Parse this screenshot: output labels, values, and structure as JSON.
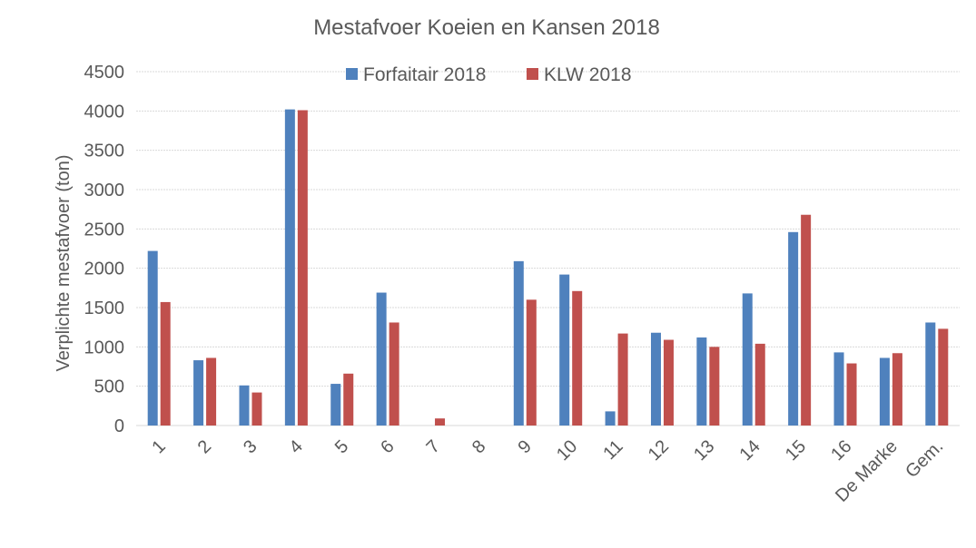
{
  "chart_data": {
    "type": "bar",
    "title": "Mestafvoer Koeien en Kansen 2018",
    "xlabel": "",
    "ylabel": "Verplichte mestafvoer (ton)",
    "ylim": [
      0,
      4500
    ],
    "yticks": [
      0,
      500,
      1000,
      1500,
      2000,
      2500,
      3000,
      3500,
      4000,
      4500
    ],
    "grid": true,
    "legend_position": "top",
    "categories": [
      "1",
      "2",
      "3",
      "4",
      "5",
      "6",
      "7",
      "8",
      "9",
      "10",
      "11",
      "12",
      "13",
      "14",
      "15",
      "16",
      "De Marke",
      "Gem."
    ],
    "series": [
      {
        "name": "Forfaitair 2018",
        "color": "#4f81bd",
        "values": [
          2220,
          830,
          510,
          4020,
          530,
          1690,
          0,
          0,
          2090,
          1920,
          180,
          1180,
          1120,
          1680,
          2460,
          930,
          860,
          1310
        ]
      },
      {
        "name": "KLW 2018",
        "color": "#c0504d",
        "values": [
          1570,
          860,
          420,
          4010,
          660,
          1310,
          90,
          0,
          1600,
          1710,
          1170,
          1090,
          1000,
          1040,
          2680,
          790,
          920,
          1230
        ]
      }
    ]
  }
}
